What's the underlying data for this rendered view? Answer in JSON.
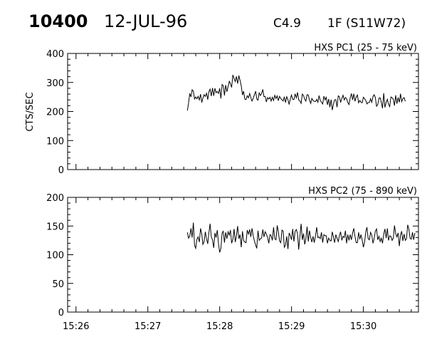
{
  "header": {
    "flare_id": "10400",
    "date": "12-JUL-96",
    "goes_class": "C4.9",
    "optical": "1F (S11W72)"
  },
  "chart_data": [
    {
      "type": "line",
      "title": "HXS PC1 (25 - 75 keV)",
      "xlabel": "",
      "ylabel": "CTS/SEC",
      "xlim": [
        "15:25:53",
        "15:30:46"
      ],
      "ylim": [
        0,
        400
      ],
      "xtick_labels": [
        "15:26",
        "15:27",
        "15:28",
        "15:29",
        "15:30"
      ],
      "ytick_labels": [
        "0",
        "100",
        "200",
        "300",
        "400"
      ],
      "series": [
        {
          "data_start": "15:27:33",
          "sample_interval_s": 1,
          "values": [
            203,
            228,
            262,
            250,
            275,
            270,
            243,
            250,
            244,
            252,
            240,
            260,
            231,
            246,
            258,
            252,
            263,
            241,
            268,
            277,
            253,
            281,
            254,
            280,
            265,
            269,
            262,
            280,
            245,
            293,
            289,
            255,
            291,
            268,
            286,
            304,
            296,
            283,
            326,
            314,
            303,
            321,
            296,
            324,
            307,
            288,
            257,
            270,
            243,
            241,
            254,
            247,
            262,
            248,
            236,
            246,
            258,
            270,
            243,
            239,
            264,
            255,
            262,
            276,
            251,
            252,
            233,
            248,
            243,
            249,
            236,
            249,
            238,
            256,
            245,
            254,
            237,
            252,
            245,
            240,
            236,
            251,
            231,
            251,
            241,
            224,
            244,
            257,
            242,
            241,
            261,
            247,
            266,
            240,
            236,
            228,
            260,
            255,
            242,
            236,
            258,
            257,
            239,
            228,
            245,
            238,
            235,
            234,
            242,
            232,
            255,
            239,
            232,
            226,
            253,
            240,
            249,
            223,
            243,
            215,
            241,
            205,
            225,
            240,
            241,
            215,
            254,
            251,
            231,
            245,
            256,
            240,
            248,
            244,
            231,
            224,
            247,
            262,
            240,
            261,
            235,
            250,
            257,
            230,
            238,
            232,
            230,
            249,
            244,
            238,
            226,
            231,
            231,
            244,
            232,
            251,
            258,
            248,
            218,
            224,
            246,
            247,
            232,
            211,
            263,
            214,
            231,
            242,
            225,
            217,
            250,
            247,
            242,
            220,
            256,
            227,
            248,
            232,
            261,
            234,
            244,
            248,
            235
          ]
        }
      ]
    },
    {
      "type": "line",
      "title": "HXS PC2 (75 - 890 keV)",
      "xlabel": "",
      "ylabel": "",
      "xlim": [
        "15:25:53",
        "15:30:46"
      ],
      "ylim": [
        0,
        200
      ],
      "xtick_labels": [
        "15:26",
        "15:27",
        "15:28",
        "15:29",
        "15:30"
      ],
      "ytick_labels": [
        "0",
        "50",
        "100",
        "150",
        "200"
      ],
      "series": [
        {
          "data_start": "15:27:33",
          "sample_interval_s": 1,
          "values": [
            139,
            129,
            132,
            146,
            130,
            156,
            116,
            111,
            127,
            131,
            122,
            146,
            136,
            118,
            123,
            140,
            128,
            119,
            138,
            154,
            131,
            126,
            112,
            138,
            130,
            143,
            120,
            104,
            111,
            138,
            141,
            121,
            139,
            128,
            140,
            134,
            143,
            120,
            127,
            145,
            122,
            133,
            150,
            128,
            135,
            113,
            141,
            125,
            122,
            121,
            143,
            136,
            144,
            131,
            146,
            133,
            124,
            117,
            111,
            142,
            125,
            128,
            129,
            144,
            131,
            140,
            136,
            130,
            120,
            135,
            133,
            125,
            148,
            128,
            126,
            151,
            140,
            124,
            121,
            143,
            141,
            113,
            117,
            132,
            110,
            138,
            133,
            126,
            145,
            123,
            141,
            144,
            136,
            109,
            132,
            154,
            126,
            137,
            118,
            128,
            149,
            123,
            142,
            130,
            122,
            132,
            121,
            133,
            148,
            130,
            131,
            128,
            139,
            121,
            135,
            133,
            133,
            120,
            129,
            125,
            124,
            140,
            131,
            121,
            135,
            129,
            123,
            133,
            140,
            125,
            132,
            130,
            142,
            120,
            135,
            125,
            135,
            126,
            138,
            146,
            132,
            121,
            121,
            139,
            127,
            135,
            126,
            113,
            122,
            140,
            148,
            128,
            126,
            139,
            134,
            120,
            128,
            141,
            145,
            126,
            132,
            123,
            129,
            120,
            136,
            145,
            129,
            146,
            125,
            133,
            132,
            125,
            129,
            151,
            137,
            131,
            138,
            115,
            134,
            141,
            124,
            136,
            125,
            128,
            152,
            145,
            129,
            127,
            139,
            126,
            138
          ]
        }
      ]
    }
  ]
}
